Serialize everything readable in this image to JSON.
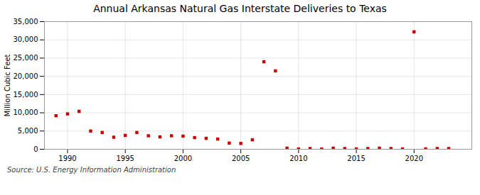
{
  "chart_data": {
    "type": "scatter",
    "title": "Annual Arkansas Natural Gas Interstate Deliveries to Texas",
    "ylabel": "Million Cubic Feet",
    "source": "Source: U.S. Energy Information Administration",
    "x": [
      1989,
      1990,
      1991,
      1992,
      1993,
      1994,
      1995,
      1996,
      1997,
      1998,
      1999,
      2000,
      2001,
      2002,
      2003,
      2004,
      2005,
      2006,
      2007,
      2008,
      2009,
      2010,
      2011,
      2012,
      2013,
      2014,
      2015,
      2016,
      2017,
      2018,
      2019,
      2020,
      2021,
      2022,
      2023
    ],
    "values": [
      9200,
      9700,
      10400,
      5000,
      4600,
      3300,
      3800,
      4600,
      3700,
      3400,
      3700,
      3600,
      3200,
      3000,
      2800,
      1700,
      1600,
      2600,
      24000,
      21500,
      300,
      100,
      200,
      50,
      300,
      200,
      100,
      200,
      300,
      200,
      100,
      32200,
      100,
      200,
      200
    ],
    "color": "#cc0000",
    "marker": "square",
    "xlim": [
      1988,
      2025
    ],
    "xticks": [
      1990,
      1995,
      2000,
      2005,
      2010,
      2015,
      2020
    ],
    "ylim": [
      0,
      35000
    ],
    "yticks": [
      0,
      {
        "value": 5000,
        "label": "5,000"
      },
      {
        "value": 10000,
        "label": "10,000"
      },
      {
        "value": 15000,
        "label": "15,000"
      },
      {
        "value": 20000,
        "label": "20,000"
      },
      {
        "value": 25000,
        "label": "25,000"
      },
      {
        "value": 30000,
        "label": "30,000"
      },
      {
        "value": 35000,
        "label": "35,000"
      }
    ],
    "grid": true
  }
}
